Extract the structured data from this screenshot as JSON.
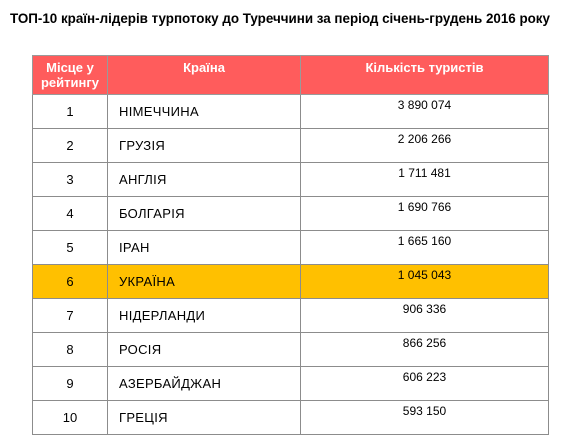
{
  "title": "ТОП-10 країн-лідерів турпотоку до Туреччини за період січень-грудень 2016 року",
  "table": {
    "headers": {
      "rank": "Місце у рейтингу",
      "country": "Країна",
      "count": "Кількість туристів"
    },
    "rows": [
      {
        "rank": "1",
        "country": "НІМЕЧЧИНА",
        "count": "3 890 074"
      },
      {
        "rank": "2",
        "country": "ГРУЗІЯ",
        "count": "2 206 266"
      },
      {
        "rank": "3",
        "country": "АНГЛІЯ",
        "count": "1 711 481"
      },
      {
        "rank": "4",
        "country": "БОЛГАРІЯ",
        "count": "1 690 766"
      },
      {
        "rank": "5",
        "country": "ІРАН",
        "count": "1 665 160"
      },
      {
        "rank": "6",
        "country": "УКРАЇНА",
        "count": "1 045 043"
      },
      {
        "rank": "7",
        "country": "НІДЕРЛАНДИ",
        "count": "906 336"
      },
      {
        "rank": "8",
        "country": "РОСІЯ",
        "count": "866 256"
      },
      {
        "rank": "9",
        "country": "АЗЕРБАЙДЖАН",
        "count": "606 223"
      },
      {
        "rank": "10",
        "country": "ГРЕЦІЯ",
        "count": "593 150"
      }
    ]
  },
  "colors": {
    "header_bg": "#ff5c5c",
    "header_text": "#ffffff",
    "highlight_row_bg": "#ffc000"
  }
}
